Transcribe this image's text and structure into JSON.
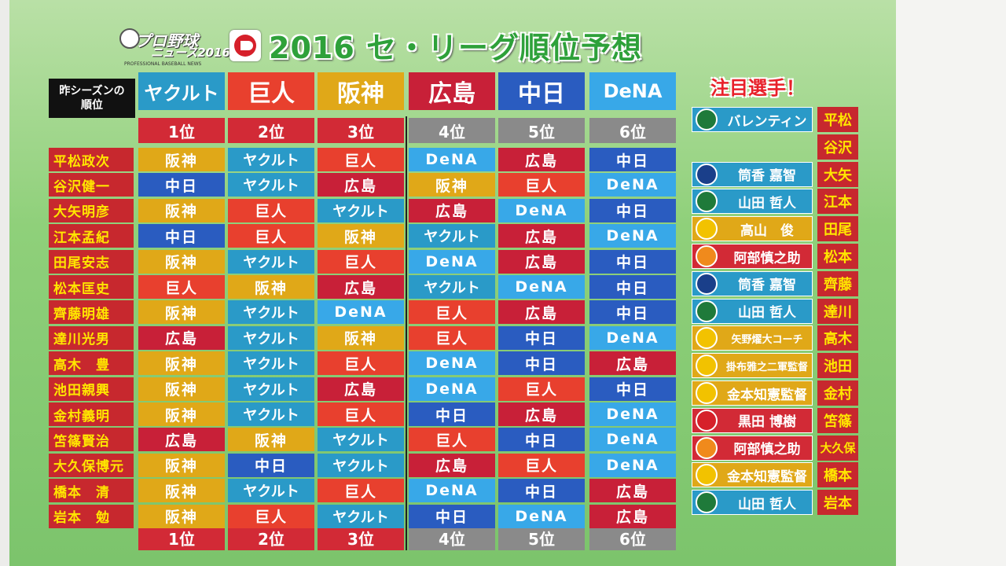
{
  "title": "2016 セ・リーグ順位予想",
  "logo": {
    "line1": "プロ野球",
    "line2": "ニュース2016",
    "line3": "PROFESSIONAL BASEBALL NEWS"
  },
  "corner_label": [
    "昨シーズンの",
    "順位"
  ],
  "teams": [
    "ヤクルト",
    "巨人",
    "阪神",
    "広島",
    "中日",
    "DeNA"
  ],
  "ranks": [
    "1位",
    "2位",
    "3位",
    "4位",
    "5位",
    "6位"
  ],
  "team_colors": {
    "ヤクルト": "#2a9ac8",
    "巨人": "#e8402e",
    "阪神": "#e0a818",
    "広島": "#c82038",
    "中日": "#2a5cc0",
    "DeNA": "#38a8e8"
  },
  "rank_colors": {
    "top": "#d22a36",
    "bottom": "#8a8a8a"
  },
  "predictions": [
    {
      "name": "平松政次",
      "picks": [
        "阪神",
        "ヤクルト",
        "巨人",
        "DeNA",
        "広島",
        "中日"
      ]
    },
    {
      "name": "谷沢健一",
      "picks": [
        "中日",
        "ヤクルト",
        "広島",
        "阪神",
        "巨人",
        "DeNA"
      ]
    },
    {
      "name": "大矢明彦",
      "picks": [
        "阪神",
        "巨人",
        "ヤクルト",
        "広島",
        "DeNA",
        "中日"
      ]
    },
    {
      "name": "江本孟紀",
      "picks": [
        "中日",
        "巨人",
        "阪神",
        "ヤクルト",
        "広島",
        "DeNA"
      ]
    },
    {
      "name": "田尾安志",
      "picks": [
        "阪神",
        "ヤクルト",
        "巨人",
        "DeNA",
        "広島",
        "中日"
      ]
    },
    {
      "name": "松本匡史",
      "picks": [
        "巨人",
        "阪神",
        "広島",
        "ヤクルト",
        "DeNA",
        "中日"
      ]
    },
    {
      "name": "齊藤明雄",
      "picks": [
        "阪神",
        "ヤクルト",
        "DeNA",
        "巨人",
        "広島",
        "中日"
      ]
    },
    {
      "name": "達川光男",
      "picks": [
        "広島",
        "ヤクルト",
        "阪神",
        "巨人",
        "中日",
        "DeNA"
      ]
    },
    {
      "name": "高木　豊",
      "picks": [
        "阪神",
        "ヤクルト",
        "巨人",
        "DeNA",
        "中日",
        "広島"
      ]
    },
    {
      "name": "池田親興",
      "picks": [
        "阪神",
        "ヤクルト",
        "広島",
        "DeNA",
        "巨人",
        "中日"
      ]
    },
    {
      "name": "金村義明",
      "picks": [
        "阪神",
        "ヤクルト",
        "巨人",
        "中日",
        "広島",
        "DeNA"
      ]
    },
    {
      "name": "笘篠賢治",
      "picks": [
        "広島",
        "阪神",
        "ヤクルト",
        "巨人",
        "中日",
        "DeNA"
      ]
    },
    {
      "name": "大久保博元",
      "picks": [
        "阪神",
        "中日",
        "ヤクルト",
        "広島",
        "巨人",
        "DeNA"
      ]
    },
    {
      "name": "橋本　清",
      "picks": [
        "阪神",
        "ヤクルト",
        "巨人",
        "DeNA",
        "中日",
        "広島"
      ]
    },
    {
      "name": "岩本　勉",
      "picks": [
        "阪神",
        "巨人",
        "ヤクルト",
        "中日",
        "DeNA",
        "広島"
      ]
    }
  ],
  "notable_title": "注目選手！",
  "notable": [
    {
      "player": "バレンティン",
      "team": "ヤクルト",
      "icon": "swallows-logo-icon",
      "pundit": "平松"
    },
    {
      "player": "",
      "team": "",
      "icon": "",
      "pundit": "谷沢"
    },
    {
      "player": "筒香 嘉智",
      "team": "DeNA",
      "icon": "baystars-logo-icon",
      "pundit": "大矢"
    },
    {
      "player": "山田 哲人",
      "team": "ヤクルト",
      "icon": "swallows-logo-icon",
      "pundit": "江本"
    },
    {
      "player": "高山　俊",
      "team": "阪神",
      "icon": "tigers-logo-icon",
      "pundit": "田尾"
    },
    {
      "player": "阿部慎之助",
      "team": "巨人",
      "icon": "giants-logo-icon",
      "pundit": "松本"
    },
    {
      "player": "筒香 嘉智",
      "team": "DeNA",
      "icon": "baystars-logo-icon",
      "pundit": "齊藤"
    },
    {
      "player": "山田 哲人",
      "team": "ヤクルト",
      "icon": "swallows-logo-icon",
      "pundit": "達川"
    },
    {
      "player": "矢野燿大コーチ",
      "team": "阪神",
      "icon": "tigers-logo-icon",
      "pundit": "高木"
    },
    {
      "player": "掛布雅之二軍監督",
      "team": "阪神",
      "icon": "tigers-logo-icon",
      "pundit": "池田"
    },
    {
      "player": "金本知憲監督",
      "team": "阪神",
      "icon": "tigers-logo-icon",
      "pundit": "金村"
    },
    {
      "player": "黒田 博樹",
      "team": "広島",
      "icon": "carp-logo-icon",
      "pundit": "笘篠"
    },
    {
      "player": "阿部慎之助",
      "team": "巨人",
      "icon": "giants-logo-icon",
      "pundit": "大久保"
    },
    {
      "player": "金本知憲監督",
      "team": "阪神",
      "icon": "tigers-logo-icon",
      "pundit": "橋本"
    },
    {
      "player": "山田 哲人",
      "team": "ヤクルト",
      "icon": "swallows-logo-icon",
      "pundit": "岩本"
    }
  ],
  "team_icon_colors": {
    "ヤクルト": "#1f7a3a",
    "DeNA": "#1a3f8a",
    "阪神": "#f2c200",
    "巨人": "#f08a1c",
    "広島": "#d6202a"
  },
  "colors": {
    "name_bg": "#c7282e",
    "name_text": "#ffe600"
  }
}
